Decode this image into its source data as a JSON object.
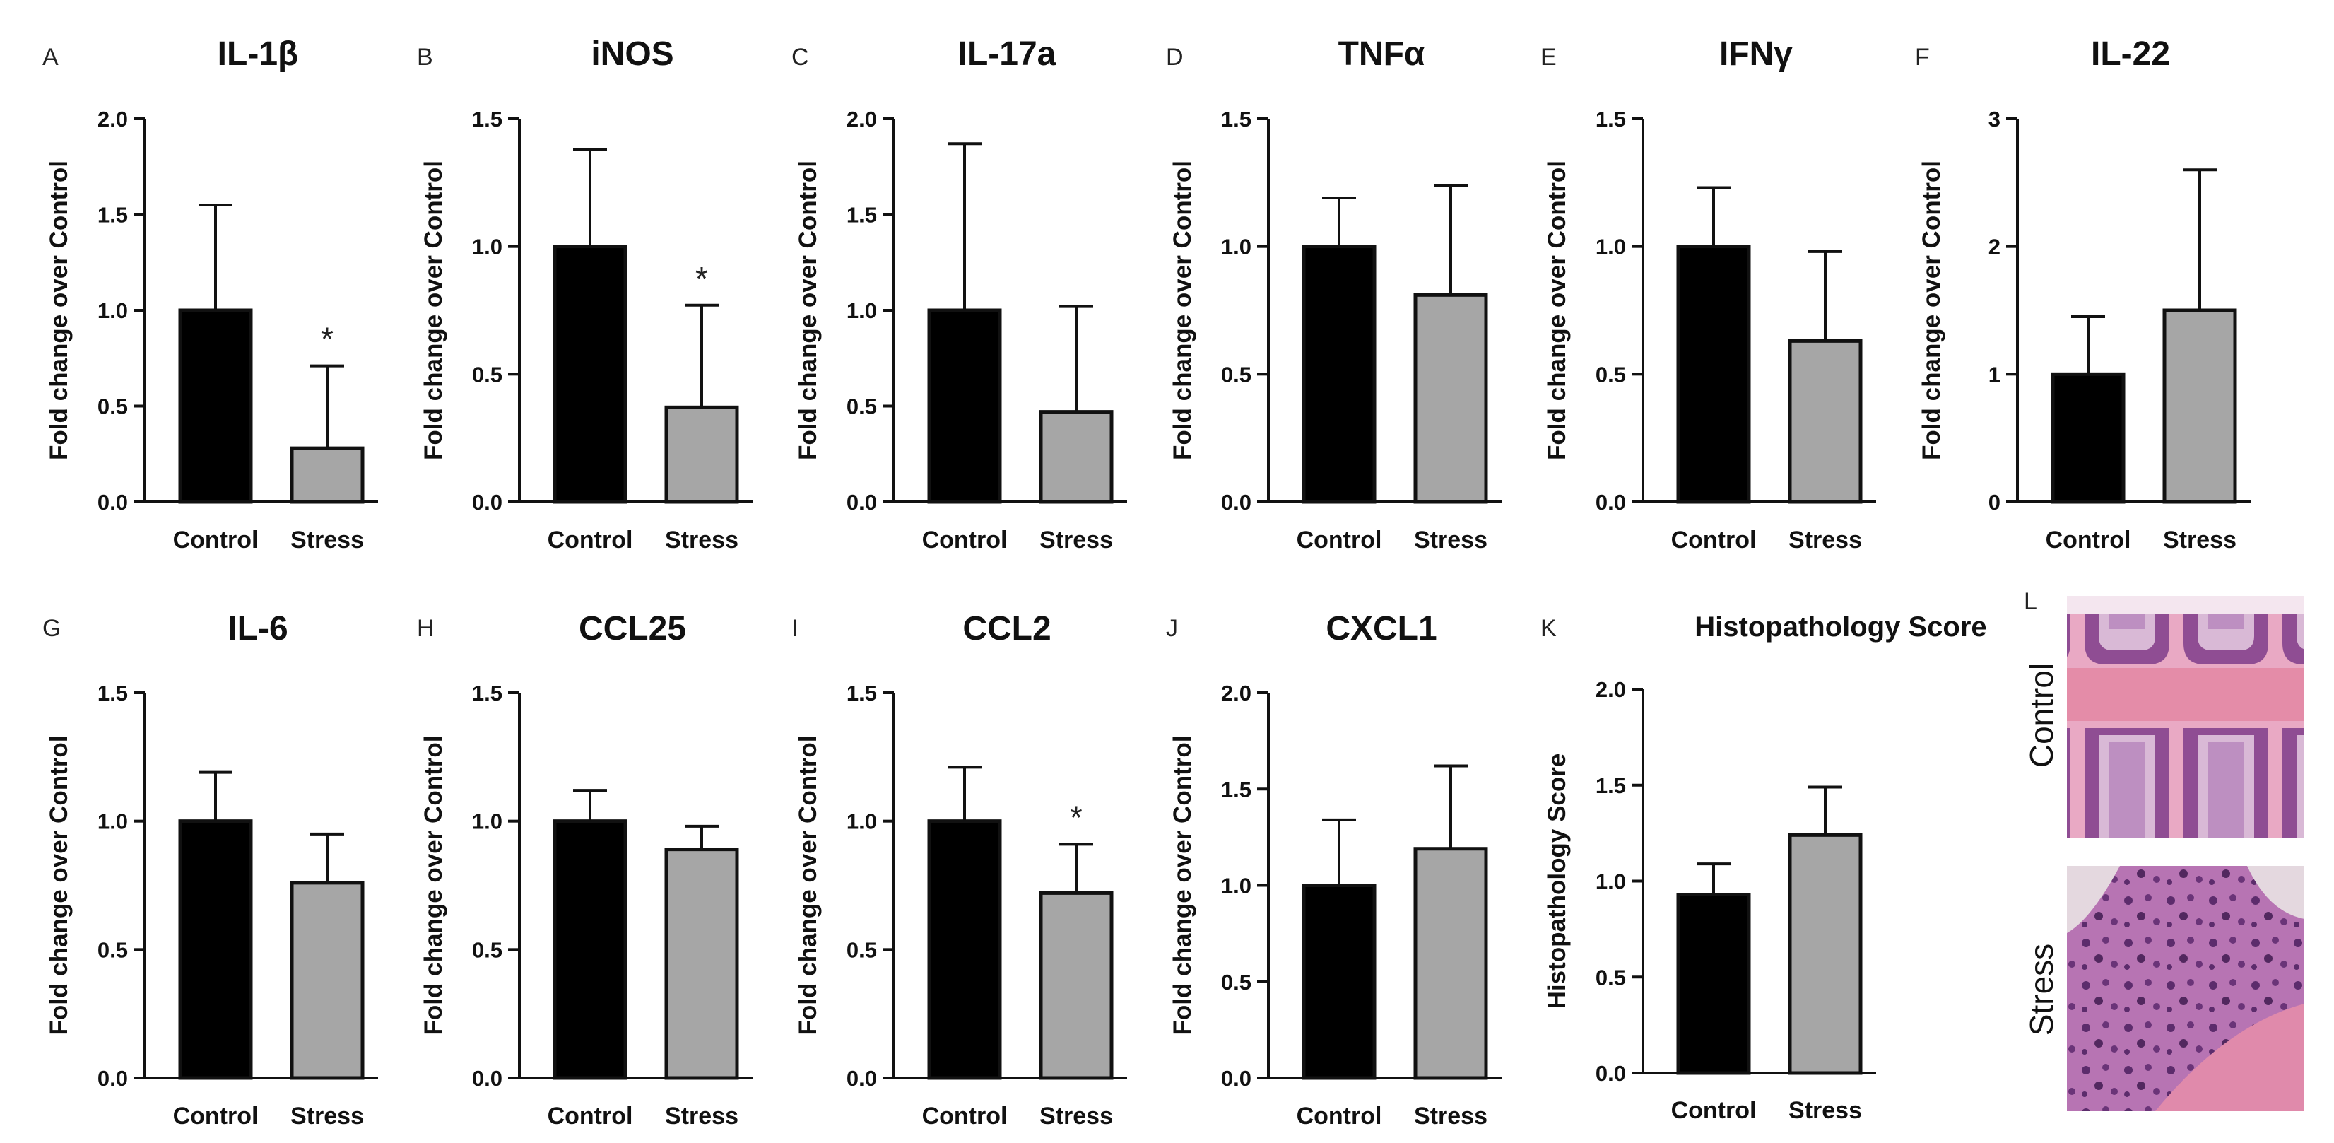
{
  "figure": {
    "bar_colors": {
      "Control": "#000000",
      "Stress": "#a6a6a6"
    },
    "categories": [
      "Control",
      "Stress"
    ],
    "default_ylabel": "Fold change over Control"
  },
  "chart_data": [
    {
      "id": "A",
      "type": "bar",
      "title": "IL-1β",
      "ylabel": "Fold change over Control",
      "categories": [
        "Control",
        "Stress"
      ],
      "values": [
        1.0,
        0.28
      ],
      "errors": [
        0.55,
        0.43
      ],
      "ylim": [
        0,
        2.0
      ],
      "ticks": [
        0.0,
        0.5,
        1.0,
        1.5,
        2.0
      ],
      "tick_labels": [
        "0.0",
        "0.5",
        "1.0",
        "1.5",
        "2.0"
      ],
      "significance": [
        "",
        "*"
      ]
    },
    {
      "id": "B",
      "type": "bar",
      "title": "iNOS",
      "ylabel": "Fold change over Control",
      "categories": [
        "Control",
        "Stress"
      ],
      "values": [
        1.0,
        0.37
      ],
      "errors": [
        0.38,
        0.4
      ],
      "ylim": [
        0,
        1.5
      ],
      "ticks": [
        0.0,
        0.5,
        1.0,
        1.5
      ],
      "tick_labels": [
        "0.0",
        "0.5",
        "1.0",
        "1.5"
      ],
      "significance": [
        "",
        "*"
      ]
    },
    {
      "id": "C",
      "type": "bar",
      "title": "IL-17a",
      "ylabel": "Fold change over Control",
      "categories": [
        "Control",
        "Stress"
      ],
      "values": [
        1.0,
        0.47
      ],
      "errors": [
        0.87,
        0.55
      ],
      "ylim": [
        0,
        2.0
      ],
      "ticks": [
        0.0,
        0.5,
        1.0,
        1.5,
        2.0
      ],
      "tick_labels": [
        "0.0",
        "0.5",
        "1.0",
        "1.5",
        "2.0"
      ],
      "significance": [
        "",
        ""
      ]
    },
    {
      "id": "D",
      "type": "bar",
      "title": "TNFα",
      "ylabel": "Fold change over Control",
      "categories": [
        "Control",
        "Stress"
      ],
      "values": [
        1.0,
        0.81
      ],
      "errors": [
        0.19,
        0.43
      ],
      "ylim": [
        0,
        1.5
      ],
      "ticks": [
        0.0,
        0.5,
        1.0,
        1.5
      ],
      "tick_labels": [
        "0.0",
        "0.5",
        "1.0",
        "1.5"
      ],
      "significance": [
        "",
        ""
      ]
    },
    {
      "id": "E",
      "type": "bar",
      "title": "IFNγ",
      "ylabel": "Fold change over Control",
      "categories": [
        "Control",
        "Stress"
      ],
      "values": [
        1.0,
        0.63
      ],
      "errors": [
        0.23,
        0.35
      ],
      "ylim": [
        0,
        1.5
      ],
      "ticks": [
        0.0,
        0.5,
        1.0,
        1.5
      ],
      "tick_labels": [
        "0.0",
        "0.5",
        "1.0",
        "1.5"
      ],
      "significance": [
        "",
        ""
      ]
    },
    {
      "id": "F",
      "type": "bar",
      "title": "IL-22",
      "ylabel": "Fold change over Control",
      "categories": [
        "Control",
        "Stress"
      ],
      "values": [
        1.0,
        1.5
      ],
      "errors": [
        0.45,
        1.1
      ],
      "ylim": [
        0,
        3
      ],
      "ticks": [
        0,
        1,
        2,
        3
      ],
      "tick_labels": [
        "0",
        "1",
        "2",
        "3"
      ],
      "significance": [
        "",
        ""
      ]
    },
    {
      "id": "G",
      "type": "bar",
      "title": "IL-6",
      "ylabel": "Fold change over Control",
      "categories": [
        "Control",
        "Stress"
      ],
      "values": [
        1.0,
        0.76
      ],
      "errors": [
        0.19,
        0.19
      ],
      "ylim": [
        0,
        1.5
      ],
      "ticks": [
        0.0,
        0.5,
        1.0,
        1.5
      ],
      "tick_labels": [
        "0.0",
        "0.5",
        "1.0",
        "1.5"
      ],
      "significance": [
        "",
        ""
      ]
    },
    {
      "id": "H",
      "type": "bar",
      "title": "CCL25",
      "ylabel": "Fold change over Control",
      "categories": [
        "Control",
        "Stress"
      ],
      "values": [
        1.0,
        0.89
      ],
      "errors": [
        0.12,
        0.09
      ],
      "ylim": [
        0,
        1.5
      ],
      "ticks": [
        0.0,
        0.5,
        1.0,
        1.5
      ],
      "tick_labels": [
        "0.0",
        "0.5",
        "1.0",
        "1.5"
      ],
      "significance": [
        "",
        ""
      ]
    },
    {
      "id": "I",
      "type": "bar",
      "title": "CCL2",
      "ylabel": "Fold change over Control",
      "categories": [
        "Control",
        "Stress"
      ],
      "values": [
        1.0,
        0.72
      ],
      "errors": [
        0.21,
        0.19
      ],
      "ylim": [
        0,
        1.5
      ],
      "ticks": [
        0.0,
        0.5,
        1.0,
        1.5
      ],
      "tick_labels": [
        "0.0",
        "0.5",
        "1.0",
        "1.5"
      ],
      "significance": [
        "",
        "*"
      ]
    },
    {
      "id": "J",
      "type": "bar",
      "title": "CXCL1",
      "ylabel": "Fold change over Control",
      "categories": [
        "Control",
        "Stress"
      ],
      "values": [
        1.0,
        1.19
      ],
      "errors": [
        0.34,
        0.43
      ],
      "ylim": [
        0,
        2.0
      ],
      "ticks": [
        0.0,
        0.5,
        1.0,
        1.5,
        2.0
      ],
      "tick_labels": [
        "0.0",
        "0.5",
        "1.0",
        "1.5",
        "2.0"
      ],
      "significance": [
        "",
        ""
      ]
    },
    {
      "id": "K",
      "type": "bar",
      "title": "Histopathology Score",
      "ylabel": "Histopathology Score",
      "categories": [
        "Control",
        "Stress"
      ],
      "values": [
        0.93,
        1.24
      ],
      "errors": [
        0.16,
        0.25
      ],
      "ylim": [
        0,
        2.0
      ],
      "ticks": [
        0.0,
        0.5,
        1.0,
        1.5,
        2.0
      ],
      "tick_labels": [
        "0.0",
        "0.5",
        "1.0",
        "1.5",
        "2.0"
      ],
      "significance": [
        "",
        ""
      ]
    }
  ],
  "histology": {
    "letter": "L",
    "labels": [
      "Control",
      "Stress"
    ]
  }
}
